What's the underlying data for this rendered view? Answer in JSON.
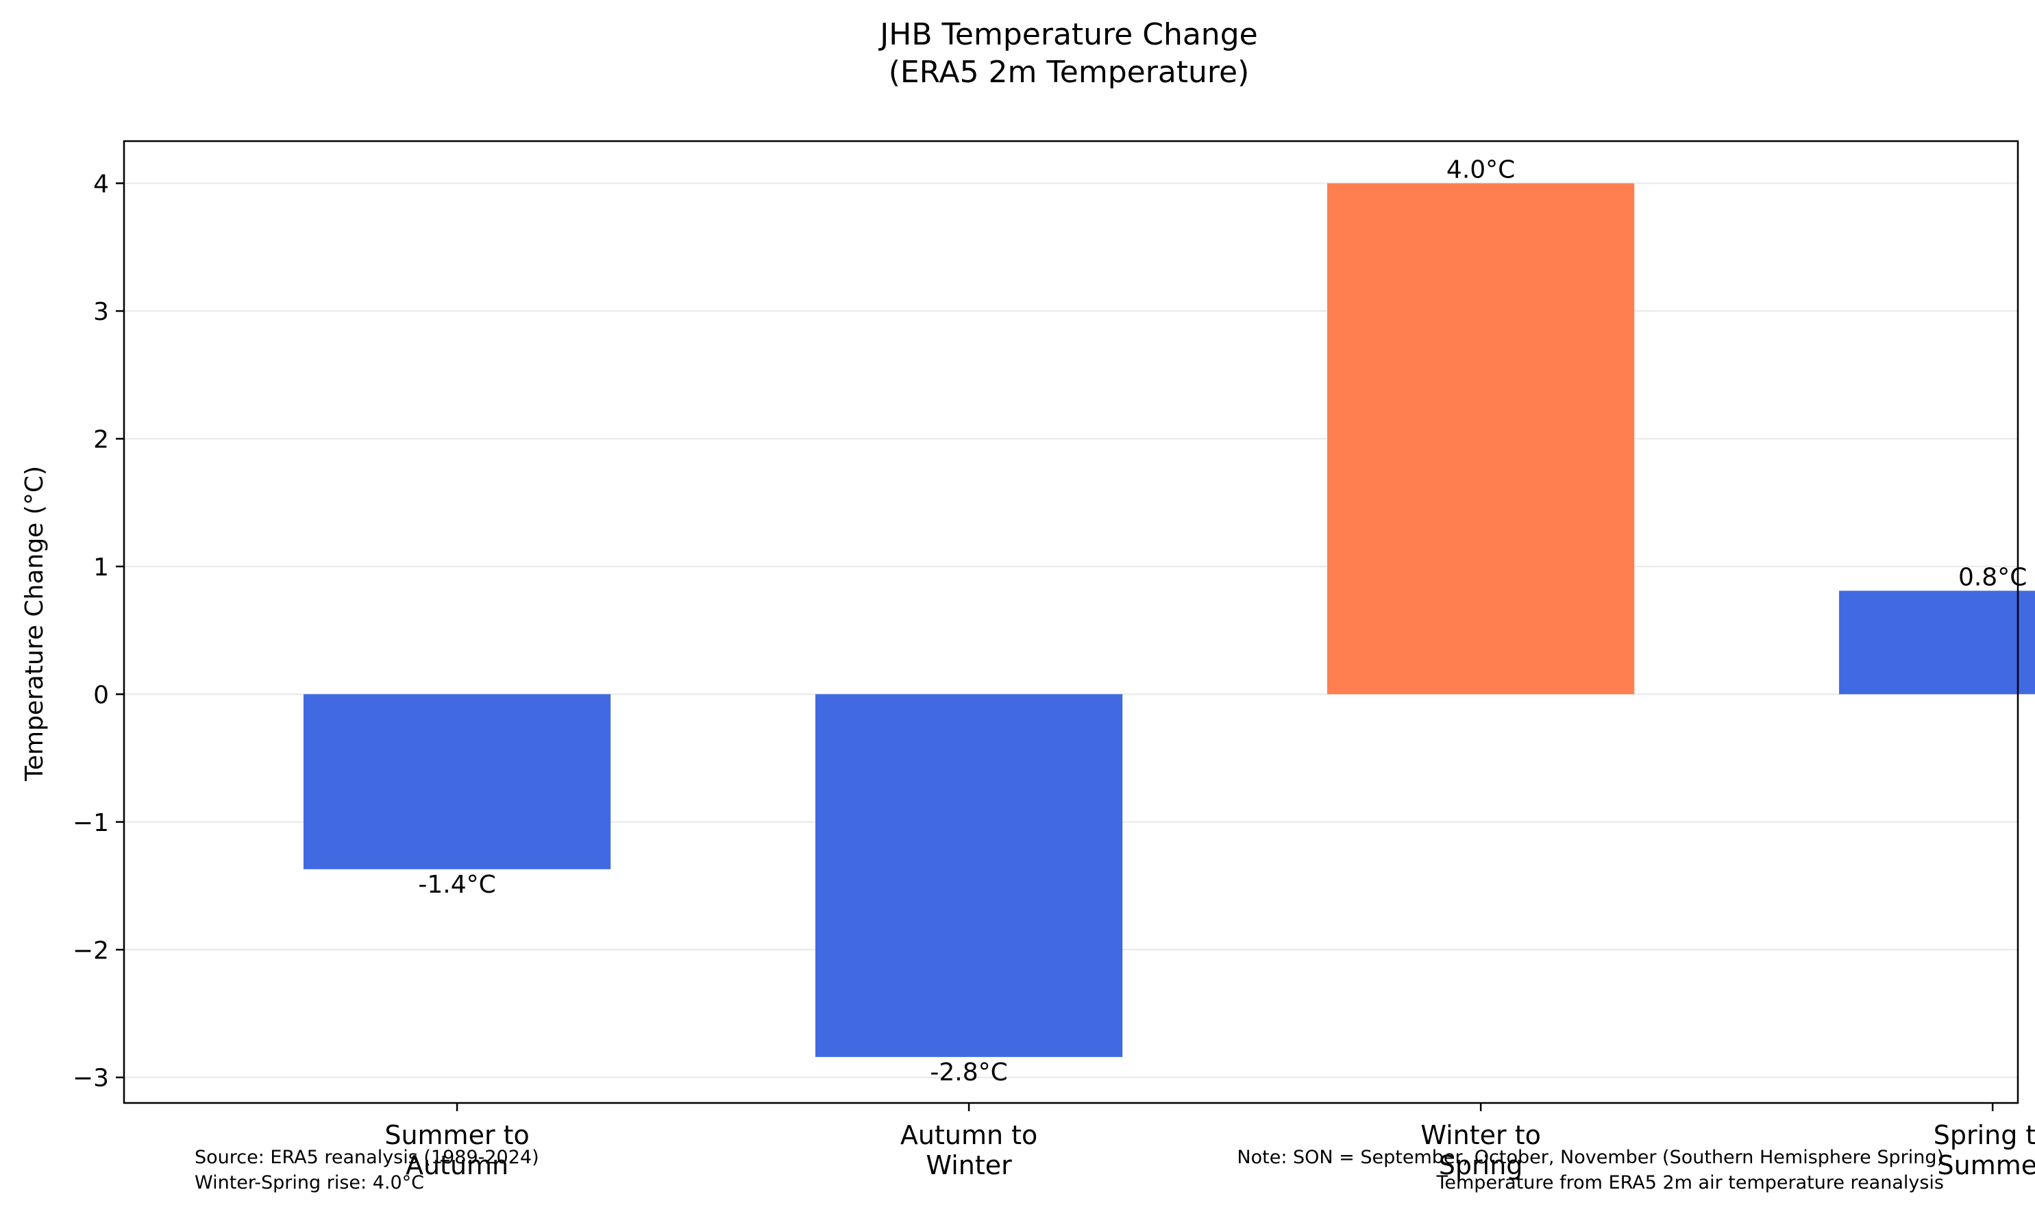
{
  "chart_data": {
    "type": "bar",
    "title_lines": [
      "JHB Temperature Change",
      "(ERA5 2m Temperature)"
    ],
    "xlabel": "",
    "ylabel": "Temperature Change (°C)",
    "ylim": [
      -3.2,
      4.33
    ],
    "yticks": [
      -3,
      -2,
      -1,
      0,
      1,
      2,
      3,
      4
    ],
    "ytick_labels": [
      "−3",
      "−2",
      "−1",
      "0",
      "1",
      "2",
      "3",
      "4"
    ],
    "grid": true,
    "categories": [
      [
        "Summer to",
        "Autumn"
      ],
      [
        "Autumn to",
        "Winter"
      ],
      [
        "Winter to",
        "Spring"
      ],
      [
        "Spring to",
        "Summer"
      ]
    ],
    "values": [
      -1.37,
      -2.84,
      4.0,
      0.81
    ],
    "value_labels": [
      "-1.4°C",
      "-2.8°C",
      "4.0°C",
      "0.8°C"
    ],
    "colors": [
      "#4169E1",
      "#4169E1",
      "#FF7F50",
      "#4169E1"
    ]
  },
  "annotations": {
    "left": [
      "Source: ERA5 reanalysis (1989-2024)",
      "Winter-Spring rise: 4.0°C"
    ],
    "right": [
      "Note: SON = September, October, November (Southern Hemisphere Spring)",
      "Temperature from ERA5 2m air temperature reanalysis"
    ]
  }
}
